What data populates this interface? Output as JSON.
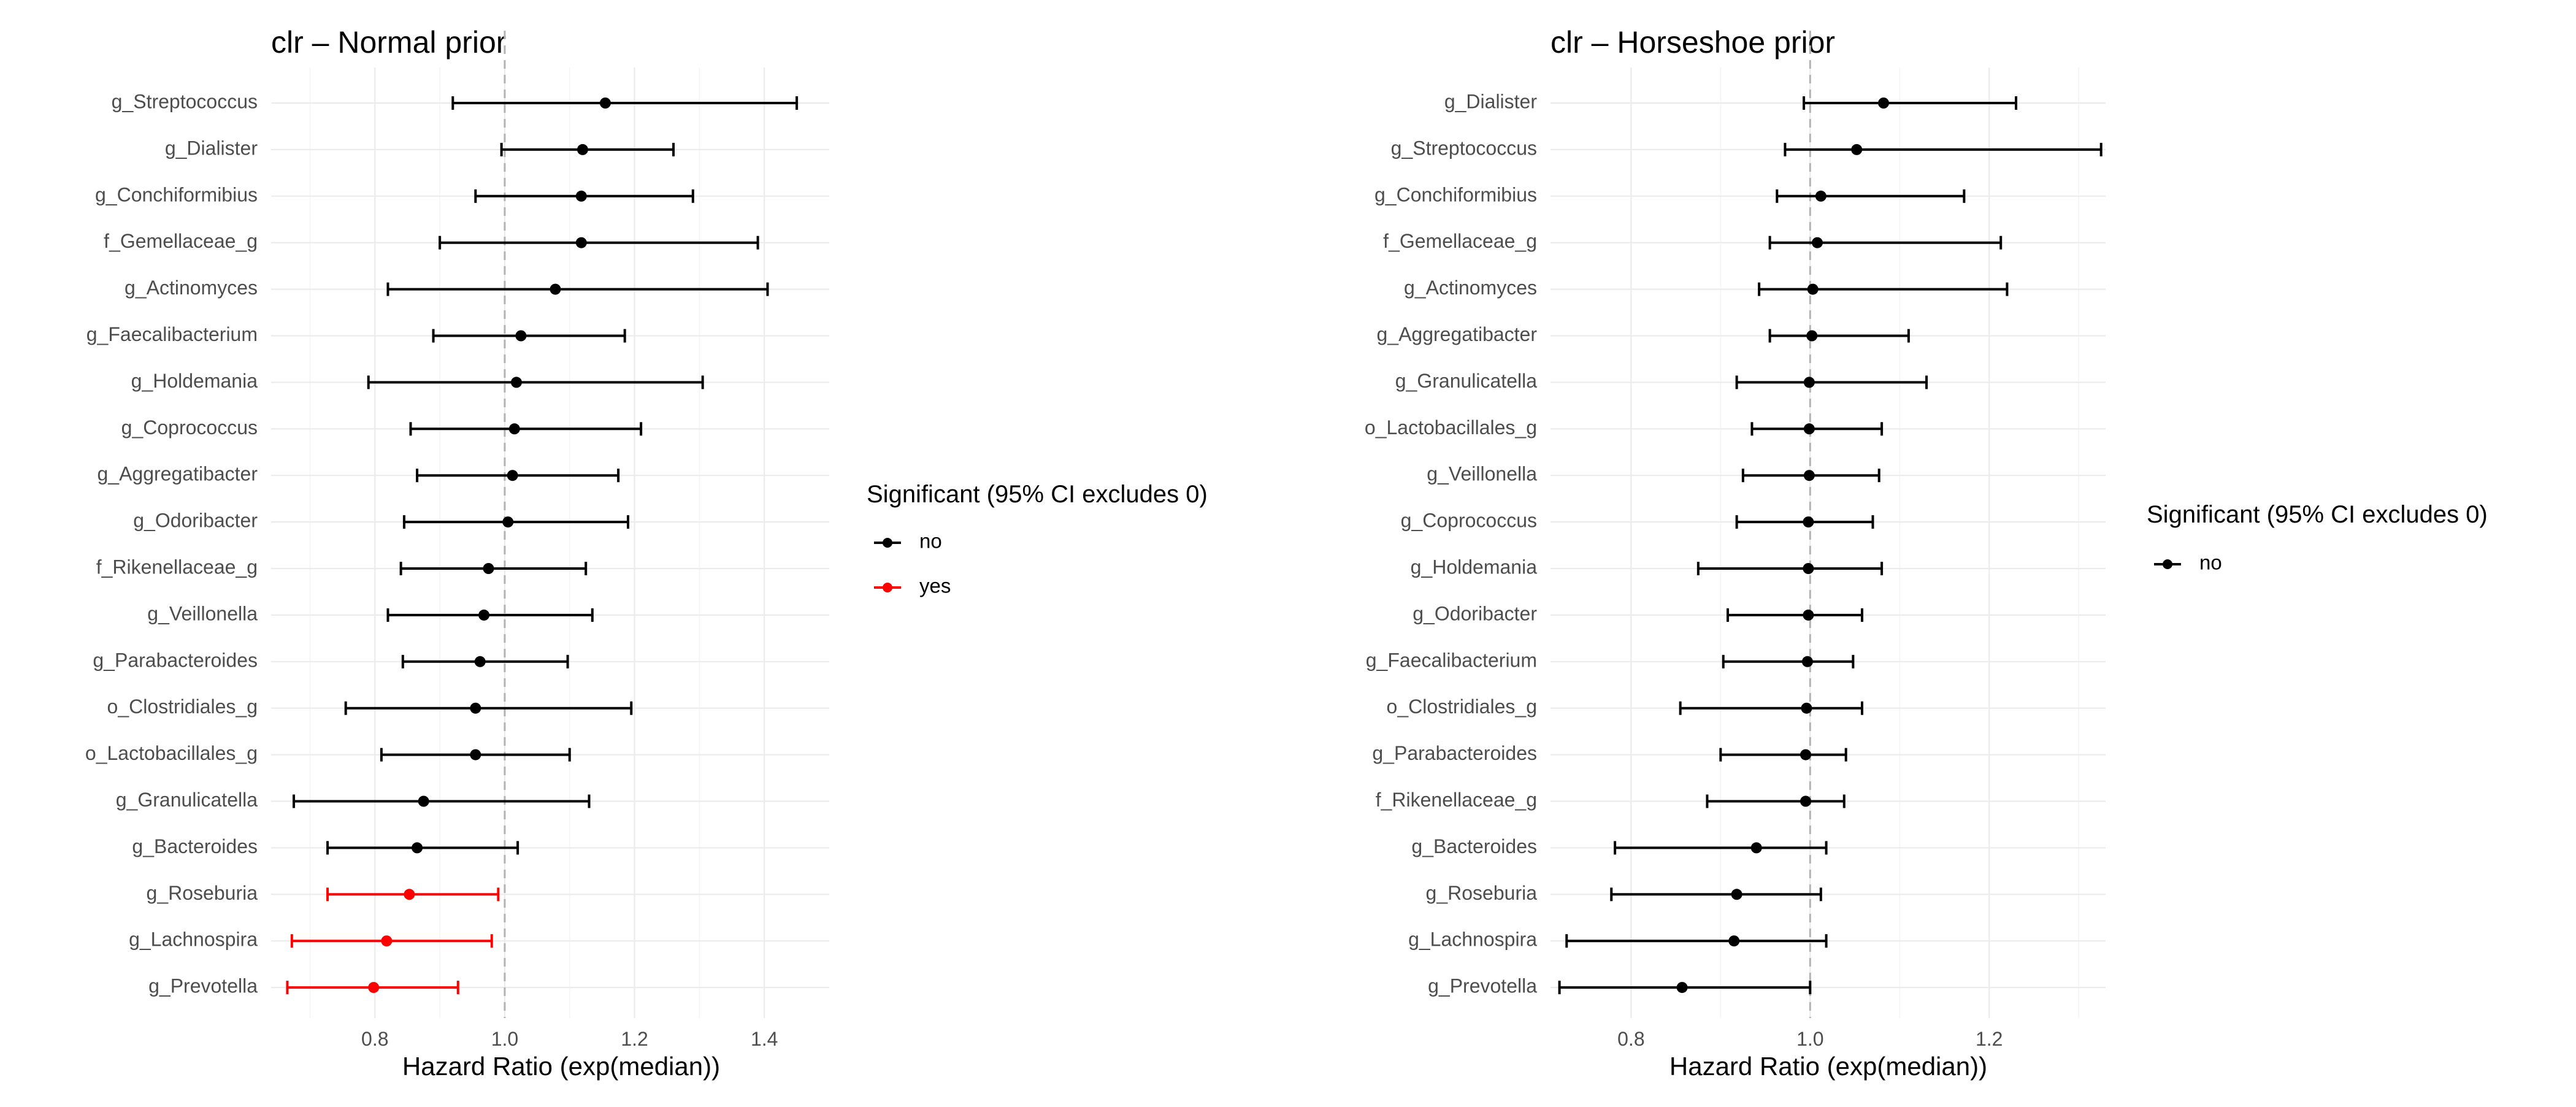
{
  "chart_data": [
    {
      "type": "forest",
      "title": "clr – Normal prior",
      "xlabel": "Hazard Ratio (exp(median))",
      "ylabel": "",
      "xlim": [
        0.64,
        1.5
      ],
      "xticks": [
        "0.8",
        "1.0",
        "1.2",
        "1.4"
      ],
      "xtick_values": [
        0.8,
        1.0,
        1.2,
        1.4
      ],
      "reference_line": 1.0,
      "legend": {
        "title": "Significant (95% CI excludes 0)",
        "entries": [
          {
            "label": "no",
            "color": "#000000"
          },
          {
            "label": "yes",
            "color": "#ff0000"
          }
        ]
      },
      "rows": [
        {
          "label": "g_Streptococcus",
          "median": 1.155,
          "lo": 0.92,
          "hi": 1.45,
          "significant": "no"
        },
        {
          "label": "g_Dialister",
          "median": 1.12,
          "lo": 0.995,
          "hi": 1.26,
          "significant": "no"
        },
        {
          "label": "g_Conchiformibius",
          "median": 1.118,
          "lo": 0.955,
          "hi": 1.29,
          "significant": "no"
        },
        {
          "label": "f_Gemellaceae_g",
          "median": 1.118,
          "lo": 0.9,
          "hi": 1.39,
          "significant": "no"
        },
        {
          "label": "g_Actinomyces",
          "median": 1.078,
          "lo": 0.82,
          "hi": 1.405,
          "significant": "no"
        },
        {
          "label": "g_Faecalibacterium",
          "median": 1.025,
          "lo": 0.89,
          "hi": 1.185,
          "significant": "no"
        },
        {
          "label": "g_Holdemania",
          "median": 1.018,
          "lo": 0.79,
          "hi": 1.305,
          "significant": "no"
        },
        {
          "label": "g_Coprococcus",
          "median": 1.015,
          "lo": 0.855,
          "hi": 1.21,
          "significant": "no"
        },
        {
          "label": "g_Aggregatibacter",
          "median": 1.012,
          "lo": 0.865,
          "hi": 1.175,
          "significant": "no"
        },
        {
          "label": "g_Odoribacter",
          "median": 1.005,
          "lo": 0.845,
          "hi": 1.19,
          "significant": "no"
        },
        {
          "label": "f_Rikenellaceae_g",
          "median": 0.975,
          "lo": 0.84,
          "hi": 1.125,
          "significant": "no"
        },
        {
          "label": "g_Veillonella",
          "median": 0.968,
          "lo": 0.82,
          "hi": 1.135,
          "significant": "no"
        },
        {
          "label": "g_Parabacteroides",
          "median": 0.962,
          "lo": 0.843,
          "hi": 1.097,
          "significant": "no"
        },
        {
          "label": "o_Clostridiales_g",
          "median": 0.955,
          "lo": 0.755,
          "hi": 1.195,
          "significant": "no"
        },
        {
          "label": "o_Lactobacillales_g",
          "median": 0.955,
          "lo": 0.81,
          "hi": 1.1,
          "significant": "no"
        },
        {
          "label": "g_Granulicatella",
          "median": 0.875,
          "lo": 0.675,
          "hi": 1.13,
          "significant": "no"
        },
        {
          "label": "g_Bacteroides",
          "median": 0.865,
          "lo": 0.727,
          "hi": 1.02,
          "significant": "no"
        },
        {
          "label": "g_Roseburia",
          "median": 0.853,
          "lo": 0.727,
          "hi": 0.99,
          "significant": "yes"
        },
        {
          "label": "g_Lachnospira",
          "median": 0.818,
          "lo": 0.672,
          "hi": 0.98,
          "significant": "yes"
        },
        {
          "label": "g_Prevotella",
          "median": 0.798,
          "lo": 0.665,
          "hi": 0.928,
          "significant": "yes"
        }
      ]
    },
    {
      "type": "forest",
      "title": "clr – Horseshoe prior",
      "xlabel": "Hazard Ratio (exp(median))",
      "ylabel": "",
      "xlim": [
        0.71,
        1.33
      ],
      "xticks": [
        "0.8",
        "1.0",
        "1.2"
      ],
      "xtick_values": [
        0.8,
        1.0,
        1.2
      ],
      "reference_line": 1.0,
      "legend": {
        "title": "Significant (95% CI excludes 0)",
        "entries": [
          {
            "label": "no",
            "color": "#000000"
          }
        ]
      },
      "rows": [
        {
          "label": "g_Dialister",
          "median": 1.082,
          "lo": 0.993,
          "hi": 1.23,
          "significant": "no"
        },
        {
          "label": "g_Streptococcus",
          "median": 1.052,
          "lo": 0.972,
          "hi": 1.325,
          "significant": "no"
        },
        {
          "label": "g_Conchiformibius",
          "median": 1.012,
          "lo": 0.963,
          "hi": 1.172,
          "significant": "no"
        },
        {
          "label": "f_Gemellaceae_g",
          "median": 1.008,
          "lo": 0.955,
          "hi": 1.213,
          "significant": "no"
        },
        {
          "label": "g_Actinomyces",
          "median": 1.003,
          "lo": 0.943,
          "hi": 1.22,
          "significant": "no"
        },
        {
          "label": "g_Aggregatibacter",
          "median": 1.002,
          "lo": 0.955,
          "hi": 1.11,
          "significant": "no"
        },
        {
          "label": "g_Granulicatella",
          "median": 0.999,
          "lo": 0.918,
          "hi": 1.13,
          "significant": "no"
        },
        {
          "label": "o_Lactobacillales_g",
          "median": 0.999,
          "lo": 0.935,
          "hi": 1.08,
          "significant": "no"
        },
        {
          "label": "g_Veillonella",
          "median": 0.999,
          "lo": 0.925,
          "hi": 1.077,
          "significant": "no"
        },
        {
          "label": "g_Coprococcus",
          "median": 0.998,
          "lo": 0.918,
          "hi": 1.07,
          "significant": "no"
        },
        {
          "label": "g_Holdemania",
          "median": 0.998,
          "lo": 0.875,
          "hi": 1.08,
          "significant": "no"
        },
        {
          "label": "g_Odoribacter",
          "median": 0.998,
          "lo": 0.908,
          "hi": 1.058,
          "significant": "no"
        },
        {
          "label": "g_Faecalibacterium",
          "median": 0.997,
          "lo": 0.903,
          "hi": 1.048,
          "significant": "no"
        },
        {
          "label": "o_Clostridiales_g",
          "median": 0.996,
          "lo": 0.855,
          "hi": 1.058,
          "significant": "no"
        },
        {
          "label": "g_Parabacteroides",
          "median": 0.995,
          "lo": 0.9,
          "hi": 1.04,
          "significant": "no"
        },
        {
          "label": "f_Rikenellaceae_g",
          "median": 0.995,
          "lo": 0.885,
          "hi": 1.038,
          "significant": "no"
        },
        {
          "label": "g_Bacteroides",
          "median": 0.94,
          "lo": 0.782,
          "hi": 1.018,
          "significant": "no"
        },
        {
          "label": "g_Roseburia",
          "median": 0.918,
          "lo": 0.778,
          "hi": 1.012,
          "significant": "no"
        },
        {
          "label": "g_Lachnospira",
          "median": 0.915,
          "lo": 0.728,
          "hi": 1.018,
          "significant": "no"
        },
        {
          "label": "g_Prevotella",
          "median": 0.857,
          "lo": 0.72,
          "hi": 1.0,
          "significant": "no"
        }
      ]
    }
  ]
}
